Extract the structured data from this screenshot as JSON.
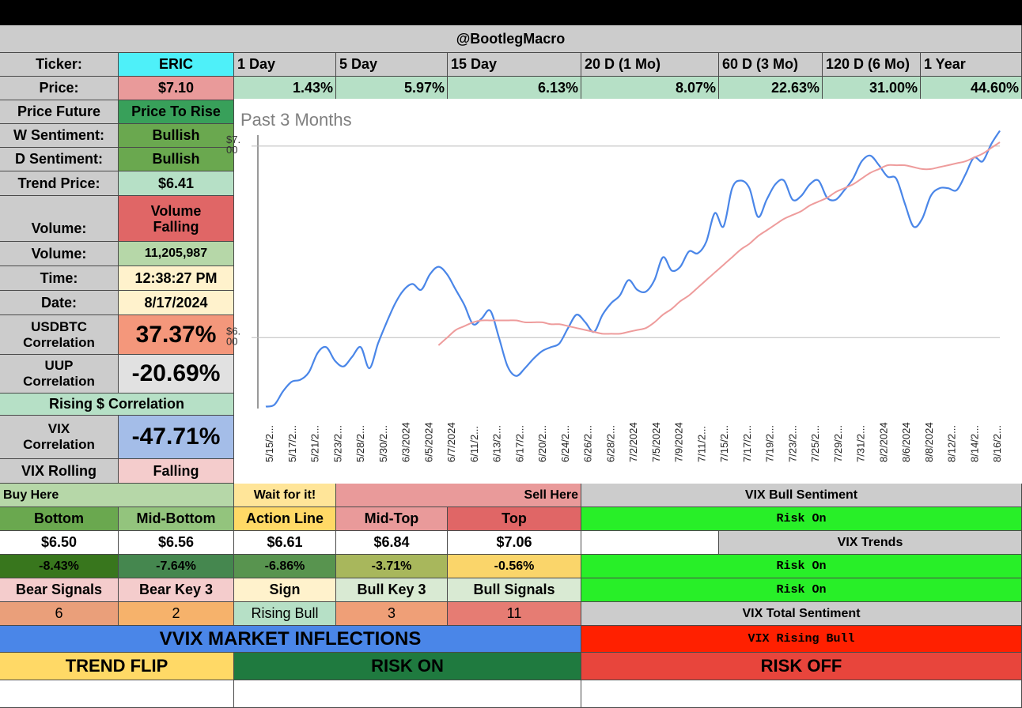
{
  "top_bar": "",
  "header": {
    "title": "@BootlegMacro"
  },
  "ticker": {
    "label": "Ticker:",
    "value": "ERIC"
  },
  "periods": [
    "1 Day",
    "5 Day",
    "15 Day",
    "20 D (1 Mo)",
    "60 D (3 Mo)",
    "120 D (6 Mo)",
    "1 Year"
  ],
  "price": {
    "label": "Price:",
    "value": "$7.10"
  },
  "returns": [
    "1.43%",
    "5.97%",
    "6.13%",
    "8.07%",
    "22.63%",
    "31.00%",
    "44.60%"
  ],
  "left_panel": {
    "price_future": {
      "label": "Price Future",
      "value": "Price To Rise"
    },
    "w_sentiment": {
      "label": "W Sentiment:",
      "value": "Bullish"
    },
    "d_sentiment": {
      "label": "D Sentiment:",
      "value": "Bullish"
    },
    "trend_price": {
      "label": "Trend Price:",
      "value": "$6.41"
    },
    "volume_signal": {
      "label": "Volume:",
      "value_line1": "Volume",
      "value_line2": "Falling"
    },
    "volume": {
      "label": "Volume:",
      "value": "11,205,987"
    },
    "time": {
      "label": "Time:",
      "value": "12:38:27 PM"
    },
    "date": {
      "label": "Date:",
      "value": "8/17/2024"
    },
    "usdbtc": {
      "label_line1": "USDBTC",
      "label_line2": "Correlation",
      "value": "37.37%"
    },
    "uup": {
      "label_line1": "UUP",
      "label_line2": "Correlation",
      "value": "-20.69%"
    },
    "rising_dollar": "Rising $ Correlation",
    "vix": {
      "label_line1": "VIX",
      "label_line2": "Correlation",
      "value": "-47.71%"
    },
    "vix_rolling": {
      "label": "VIX Rolling",
      "value": "Falling"
    }
  },
  "chart_data": {
    "type": "line",
    "title": "Past 3 Months",
    "ylabels": [
      "$7.00",
      "$6.00"
    ],
    "yticks": [
      7.0,
      6.0
    ],
    "ylim": [
      5.63,
      7.09
    ],
    "x_ticks": [
      "5/15/2...",
      "5/17/2...",
      "5/21/2...",
      "5/23/2...",
      "5/28/2...",
      "5/30/2...",
      "6/3/2024",
      "6/5/2024",
      "6/7/2024",
      "6/11/2...",
      "6/13/2...",
      "6/17/2...",
      "6/20/2...",
      "6/24/2...",
      "6/26/2...",
      "6/28/2...",
      "7/2/2024",
      "7/5/2024",
      "7/9/2024",
      "7/11/2...",
      "7/15/2...",
      "7/17/2...",
      "7/19/2...",
      "7/23/2...",
      "7/25/2...",
      "7/29/2...",
      "7/31/2...",
      "8/2/2024",
      "8/6/2024",
      "8/8/2024",
      "8/12/2...",
      "8/14/2...",
      "8/16/2..."
    ],
    "grid": true,
    "series": [
      {
        "color": "#4a86e8",
        "values": [
          5.64,
          5.65,
          5.72,
          5.77,
          5.78,
          5.82,
          5.92,
          5.95,
          5.88,
          5.85,
          5.9,
          5.95,
          5.84,
          5.97,
          6.08,
          6.18,
          6.25,
          6.28,
          6.25,
          6.33,
          6.37,
          6.33,
          6.25,
          6.17,
          6.07,
          6.1,
          6.14,
          6.0,
          5.85,
          5.8,
          5.84,
          5.89,
          5.93,
          5.95,
          5.97,
          6.05,
          6.12,
          6.08,
          6.03,
          6.12,
          6.18,
          6.22,
          6.3,
          6.25,
          6.24,
          6.3,
          6.42,
          6.35,
          6.37,
          6.45,
          6.44,
          6.5,
          6.65,
          6.58,
          6.78,
          6.82,
          6.78,
          6.63,
          6.72,
          6.8,
          6.82,
          6.72,
          6.74,
          6.8,
          6.82,
          6.73,
          6.72,
          6.77,
          6.83,
          6.92,
          6.95,
          6.9,
          6.84,
          6.83,
          6.7,
          6.58,
          6.62,
          6.74,
          6.78,
          6.78,
          6.77,
          6.85,
          6.94,
          6.92,
          7.01,
          7.08
        ]
      },
      {
        "color": "#ee9c9c",
        "values": [
          null,
          null,
          null,
          null,
          null,
          null,
          null,
          null,
          null,
          null,
          null,
          null,
          null,
          null,
          null,
          null,
          null,
          null,
          null,
          null,
          5.96,
          6.0,
          6.04,
          6.06,
          6.08,
          6.09,
          6.09,
          6.09,
          6.09,
          6.09,
          6.08,
          6.08,
          6.08,
          6.07,
          6.07,
          6.06,
          6.05,
          6.04,
          6.03,
          6.02,
          6.02,
          6.02,
          6.03,
          6.04,
          6.05,
          6.08,
          6.12,
          6.15,
          6.19,
          6.22,
          6.26,
          6.3,
          6.34,
          6.38,
          6.42,
          6.46,
          6.49,
          6.53,
          6.56,
          6.59,
          6.62,
          6.64,
          6.66,
          6.69,
          6.71,
          6.73,
          6.76,
          6.78,
          6.8,
          6.83,
          6.86,
          6.88,
          6.9,
          6.9,
          6.9,
          6.89,
          6.88,
          6.88,
          6.89,
          6.9,
          6.91,
          6.92,
          6.94,
          6.96,
          6.99,
          7.02
        ]
      }
    ]
  },
  "levels": {
    "buy_here": "Buy Here",
    "wait": "Wait for it!",
    "sell_here": "Sell Here",
    "headers": [
      "Bottom",
      "Mid-Bottom",
      "Action Line",
      "Mid-Top",
      "Top"
    ],
    "values": [
      "$6.50",
      "$6.56",
      "$6.61",
      "$6.84",
      "$7.06"
    ],
    "percents": [
      "-8.43%",
      "-7.64%",
      "-6.86%",
      "-3.71%",
      "-0.56%"
    ]
  },
  "signals": {
    "headers": [
      "Bear Signals",
      "Bear Key 3",
      "Sign",
      "Bull Key 3",
      "Bull Signals"
    ],
    "values": [
      "6",
      "2",
      "Rising Bull",
      "3",
      "11"
    ]
  },
  "vix_panel": {
    "bull_sentiment_label": "VIX Bull Sentiment",
    "bull_sentiment_value": "Risk On",
    "trends_label": "VIX Trends",
    "trend_1": "Risk On",
    "trend_2": "Risk On",
    "total_label": "VIX Total Sentiment",
    "total_value": "VIX Rising Bull"
  },
  "inflections": {
    "title": "VVIX MARKET INFLECTIONS",
    "trend_flip": "TREND FLIP",
    "risk_on": "RISK ON",
    "risk_off": "RISK OFF"
  },
  "colors": {
    "cyan": "#4ef0f9",
    "light_green": "#b6e0c6",
    "green": "#6aa84f",
    "dark_green": "#38761d",
    "salmon": "#e99a9a",
    "red": "#e06666",
    "peach": "#fff2cc",
    "blue_panel": "#a4bde8",
    "orange": "#f6b26b",
    "yellow": "#ffd966",
    "lime": "#28ef28",
    "vvix_blue": "#4a86e8",
    "risk_on_green": "#1f7a3f",
    "risk_off_red": "#e8453c",
    "vix_total_red": "#ff2000"
  }
}
